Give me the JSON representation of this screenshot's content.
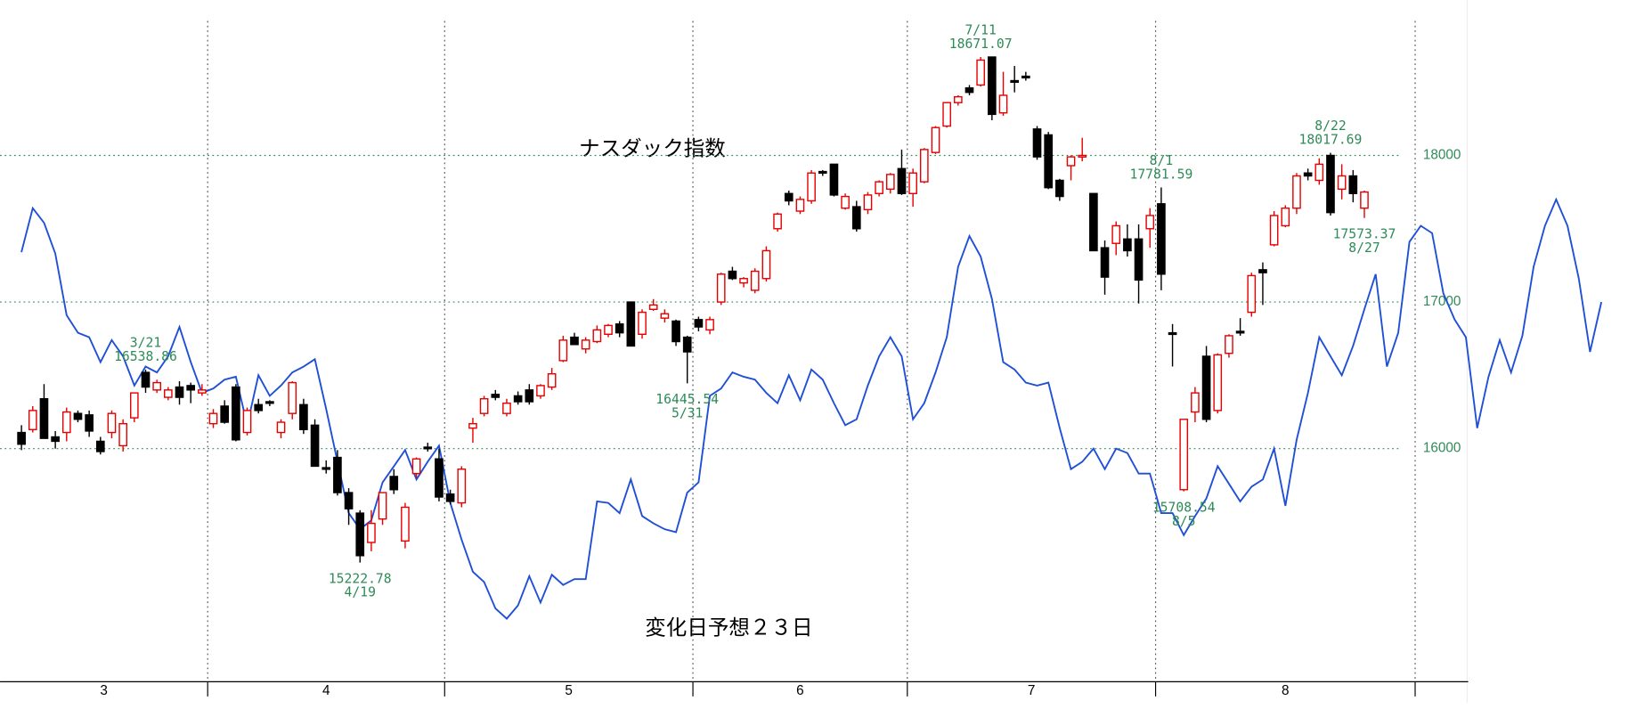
{
  "chart_data": {
    "type": "candlestick",
    "title": "ナスダック指数",
    "subtitle": "変化日予想２３日",
    "ylim": [
      14410,
      19060
    ],
    "yticks": [
      16000,
      17000,
      18000
    ],
    "xlim": [
      -1.9,
      128.2
    ],
    "xticks": [
      16.5,
      37.5,
      59.5,
      78.5,
      100.5,
      123.5
    ],
    "categories": [
      "3",
      "4",
      "5",
      "6",
      "7",
      "8"
    ],
    "grid": true,
    "up_color": "#e60000",
    "down_color": "#000000",
    "grid_color": "#2e8b57",
    "candles": [
      [
        16110,
        16160,
        15990,
        16030
      ],
      [
        16130,
        16290,
        16110,
        16260
      ],
      [
        16340,
        16440,
        16070,
        16070
      ],
      [
        16080,
        16120,
        16000,
        16050
      ],
      [
        16110,
        16280,
        16050,
        16250
      ],
      [
        16240,
        16260,
        16180,
        16200
      ],
      [
        16230,
        16260,
        16080,
        16120
      ],
      [
        16050,
        16080,
        15960,
        15980
      ],
      [
        16110,
        16260,
        16070,
        16240
      ],
      [
        16020,
        16200,
        15980,
        16170
      ],
      [
        16210,
        16380,
        16180,
        16380
      ],
      [
        16520,
        16538.86,
        16380,
        16420
      ],
      [
        16400,
        16470,
        16380,
        16450
      ],
      [
        16350,
        16420,
        16330,
        16400
      ],
      [
        16420,
        16460,
        16300,
        16350
      ],
      [
        16430,
        16450,
        16310,
        16400
      ],
      [
        16380,
        16440,
        16360,
        16400
      ],
      [
        16170,
        16270,
        16140,
        16240
      ],
      [
        16290,
        16330,
        16170,
        16180
      ],
      [
        16420,
        16440,
        16050,
        16060
      ],
      [
        16110,
        16280,
        16090,
        16260
      ],
      [
        16300,
        16340,
        16240,
        16260
      ],
      [
        16320,
        16330,
        16290,
        16310
      ],
      [
        16110,
        16200,
        16070,
        16180
      ],
      [
        16240,
        16460,
        16200,
        16450
      ],
      [
        16300,
        16340,
        16100,
        16130
      ],
      [
        16160,
        16200,
        15880,
        15880
      ],
      [
        15870,
        15920,
        15830,
        15860
      ],
      [
        15940,
        15990,
        15680,
        15700
      ],
      [
        15700,
        15730,
        15480,
        15590
      ],
      [
        15560,
        15580,
        15222.78,
        15270
      ],
      [
        15360,
        15580,
        15300,
        15490
      ],
      [
        15520,
        15700,
        15480,
        15700
      ],
      [
        15810,
        15860,
        15690,
        15720
      ],
      [
        15370,
        15630,
        15320,
        15600
      ],
      [
        15830,
        15940,
        15800,
        15930
      ],
      [
        16010,
        16040,
        15980,
        16000
      ],
      [
        15930,
        16000,
        15640,
        15670
      ],
      [
        15690,
        15720,
        15620,
        15640
      ],
      [
        15630,
        15880,
        15600,
        15860
      ],
      [
        16140,
        16210,
        16040,
        16170
      ],
      [
        16240,
        16360,
        16220,
        16340
      ],
      [
        16370,
        16400,
        16330,
        16350
      ],
      [
        16240,
        16340,
        16220,
        16310
      ],
      [
        16360,
        16390,
        16300,
        16320
      ],
      [
        16400,
        16440,
        16300,
        16320
      ],
      [
        16360,
        16440,
        16340,
        16430
      ],
      [
        16420,
        16550,
        16400,
        16510
      ],
      [
        16600,
        16770,
        16590,
        16740
      ],
      [
        16760,
        16790,
        16710,
        16710
      ],
      [
        16680,
        16760,
        16650,
        16740
      ],
      [
        16730,
        16840,
        16720,
        16810
      ],
      [
        16780,
        16850,
        16760,
        16840
      ],
      [
        16850,
        16870,
        16760,
        16790
      ],
      [
        17000,
        17000,
        16700,
        16700
      ],
      [
        16780,
        16950,
        16750,
        16930
      ],
      [
        16950,
        17020,
        16940,
        16980
      ],
      [
        16890,
        16950,
        16860,
        16920
      ],
      [
        16870,
        16880,
        16700,
        16730
      ],
      [
        16760,
        16770,
        16445.54,
        16660
      ],
      [
        16880,
        16900,
        16800,
        16830
      ],
      [
        16810,
        16900,
        16780,
        16880
      ],
      [
        17000,
        17200,
        16980,
        17190
      ],
      [
        17210,
        17240,
        17150,
        17160
      ],
      [
        17130,
        17170,
        17100,
        17160
      ],
      [
        17080,
        17230,
        17060,
        17210
      ],
      [
        17160,
        17380,
        17140,
        17350
      ],
      [
        17500,
        17610,
        17480,
        17600
      ],
      [
        17740,
        17760,
        17660,
        17690
      ],
      [
        17620,
        17720,
        17600,
        17700
      ],
      [
        17690,
        17900,
        17670,
        17880
      ],
      [
        17890,
        17900,
        17860,
        17880
      ],
      [
        17940,
        17940,
        17720,
        17730
      ],
      [
        17640,
        17740,
        17630,
        17720
      ],
      [
        17650,
        17690,
        17480,
        17500
      ],
      [
        17630,
        17750,
        17600,
        17730
      ],
      [
        17740,
        17830,
        17720,
        17820
      ],
      [
        17770,
        17880,
        17740,
        17870
      ],
      [
        17910,
        18040,
        17730,
        17740
      ],
      [
        17740,
        17910,
        17650,
        17880
      ],
      [
        17820,
        18050,
        17810,
        18040
      ],
      [
        18020,
        18200,
        18010,
        18190
      ],
      [
        18200,
        18360,
        18190,
        18360
      ],
      [
        18360,
        18410,
        18340,
        18400
      ],
      [
        18460,
        18480,
        18410,
        18430
      ],
      [
        18480,
        18671.07,
        18470,
        18650
      ],
      [
        18671.07,
        18671.07,
        18240,
        18280
      ],
      [
        18290,
        18570,
        18270,
        18410
      ],
      [
        18510,
        18610,
        18430,
        18500
      ],
      [
        18540,
        18570,
        18510,
        18530
      ],
      [
        18180,
        18200,
        17970,
        17990
      ],
      [
        18140,
        18160,
        17770,
        17780
      ],
      [
        17830,
        17840,
        17690,
        17720
      ],
      [
        17930,
        18000,
        17830,
        17990
      ],
      [
        17990,
        18120,
        17960,
        18000
      ],
      [
        17740,
        17740,
        17350,
        17350
      ],
      [
        17370,
        17420,
        17050,
        17170
      ],
      [
        17400,
        17550,
        17320,
        17520
      ],
      [
        17430,
        17530,
        17310,
        17350
      ],
      [
        17430,
        17530,
        16990,
        17150
      ],
      [
        17500,
        17640,
        17370,
        17590
      ],
      [
        17670,
        17781.59,
        17080,
        17190
      ],
      [
        16790,
        16850,
        16560,
        16780
      ],
      [
        15720,
        16200,
        15708.54,
        16200
      ],
      [
        16250,
        16420,
        16180,
        16380
      ],
      [
        16630,
        16700,
        16180,
        16200
      ],
      [
        16260,
        16650,
        16240,
        16640
      ],
      [
        16650,
        16780,
        16620,
        16770
      ],
      [
        16800,
        16890,
        16770,
        16790
      ],
      [
        16930,
        17200,
        16900,
        17180
      ],
      [
        17220,
        17270,
        16980,
        17200
      ],
      [
        17390,
        17620,
        17380,
        17590
      ],
      [
        17520,
        17660,
        17510,
        17640
      ],
      [
        17640,
        17880,
        17600,
        17860
      ],
      [
        17880,
        17910,
        17830,
        17860
      ],
      [
        17830,
        17980,
        17800,
        17940
      ],
      [
        18000,
        18017.69,
        17590,
        17610
      ],
      [
        17770,
        17940,
        17700,
        17860
      ],
      [
        17860,
        17900,
        17680,
        17740
      ],
      [
        17640,
        17760,
        17573.37,
        17750
      ]
    ],
    "line": {
      "color": "#1f4fd6",
      "values": [
        17340,
        17640,
        17540,
        17330,
        16910,
        16790,
        16760,
        16590,
        16740,
        16630,
        16430,
        16560,
        16520,
        16630,
        16830,
        16590,
        16380,
        16410,
        16470,
        16490,
        16160,
        16500,
        16360,
        16430,
        16520,
        16560,
        16610,
        16270,
        15910,
        15560,
        15450,
        15510,
        15770,
        15880,
        15990,
        15790,
        15910,
        16020,
        15630,
        15380,
        15160,
        15090,
        14910,
        14840,
        14930,
        15130,
        14950,
        15140,
        15070,
        15110,
        15110,
        15640,
        15630,
        15560,
        15790,
        15540,
        15490,
        15450,
        15430,
        15700,
        15770,
        16360,
        16410,
        16520,
        16490,
        16470,
        16380,
        16310,
        16500,
        16330,
        16540,
        16470,
        16310,
        16160,
        16200,
        16430,
        16630,
        16760,
        16630,
        16200,
        16310,
        16520,
        16760,
        17240,
        17450,
        17310,
        17020,
        16590,
        16540,
        16450,
        16430,
        16450,
        16140,
        15860,
        15910,
        16000,
        15860,
        16000,
        15970,
        15830,
        15830,
        15560,
        15560,
        15410,
        15540,
        15660,
        15880,
        15760,
        15640,
        15740,
        15790,
        16000,
        15610,
        16060,
        16380,
        16760,
        16630,
        16500,
        16700,
        16950,
        17190,
        16560,
        16790,
        17410,
        17520,
        17470,
        17060,
        16880,
        16760,
        16140,
        16490,
        16740,
        16520,
        16770,
        17240,
        17520,
        17700,
        17520,
        17160,
        16660,
        17000
      ]
    },
    "annotations": [
      {
        "date": "3/21",
        "value": 16538.86,
        "candle": 11,
        "position": "above"
      },
      {
        "date": "4/19",
        "value": 15222.78,
        "candle": 30,
        "position": "below"
      },
      {
        "date": "5/31",
        "value": 16445.54,
        "candle": 59,
        "position": "below"
      },
      {
        "date": "7/11",
        "value": 18671.07,
        "candle": 85,
        "position": "above"
      },
      {
        "date": "8/1",
        "value": 17781.59,
        "candle": 101,
        "position": "above"
      },
      {
        "date": "8/5",
        "value": 15708.54,
        "candle": 103,
        "position": "below"
      },
      {
        "date": "8/22",
        "value": 18017.69,
        "candle": 116,
        "position": "above"
      },
      {
        "date": "8/27",
        "value": 17573.37,
        "candle": 119,
        "position": "below"
      }
    ]
  }
}
